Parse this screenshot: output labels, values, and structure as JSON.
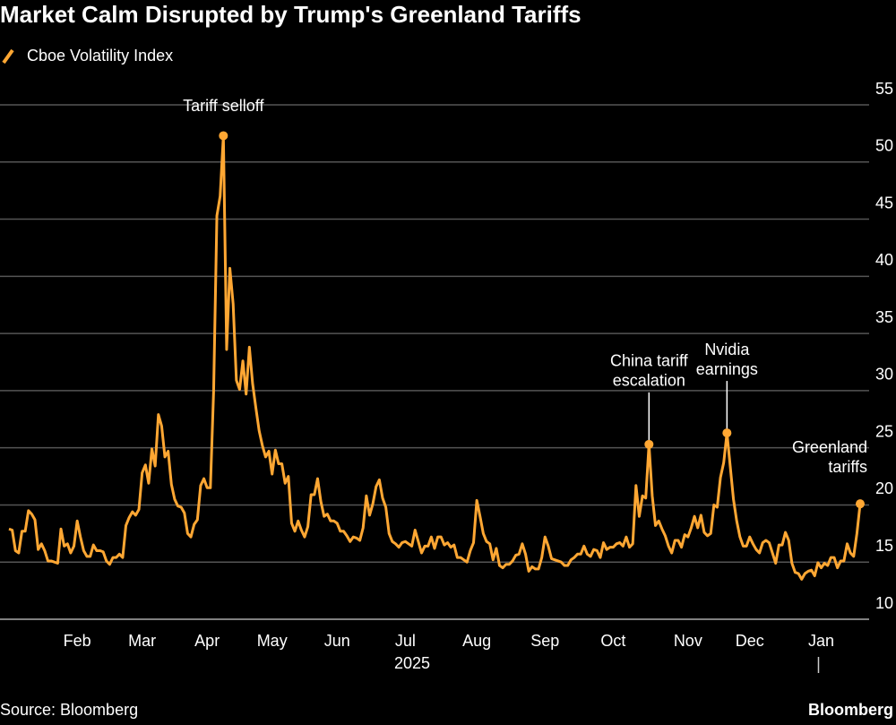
{
  "chart_data": {
    "type": "line",
    "title": "Market Calm Disrupted by Trump's Greenland Tariffs",
    "source": "Source: Bloomberg",
    "brand": "Bloomberg",
    "year_label": "2025",
    "categories": [
      null,
      null,
      null,
      null,
      null,
      null,
      null,
      null,
      null,
      null,
      null,
      null,
      null,
      null,
      null,
      null,
      null,
      null,
      null,
      null,
      null,
      "Feb",
      null,
      null,
      null,
      null,
      null,
      null,
      null,
      null,
      null,
      null,
      null,
      null,
      null,
      null,
      null,
      null,
      null,
      null,
      null,
      "Mar",
      null,
      null,
      null,
      null,
      null,
      null,
      null,
      null,
      null,
      null,
      null,
      null,
      null,
      null,
      null,
      null,
      null,
      null,
      null,
      "Apr",
      null,
      null,
      null,
      null,
      null,
      null,
      null,
      null,
      null,
      null,
      null,
      null,
      null,
      null,
      null,
      null,
      null,
      null,
      null,
      "May",
      null,
      null,
      null,
      null,
      null,
      null,
      null,
      null,
      null,
      null,
      null,
      null,
      null,
      null,
      null,
      null,
      null,
      null,
      null,
      "Jun",
      null,
      null,
      null,
      null,
      null,
      null,
      null,
      null,
      null,
      null,
      null,
      null,
      null,
      null,
      null,
      null,
      null,
      null,
      null,
      null,
      "Jul",
      null,
      null,
      null,
      null,
      null,
      null,
      null,
      null,
      null,
      null,
      null,
      null,
      null,
      null,
      null,
      null,
      null,
      null,
      null,
      null,
      null,
      "Aug",
      null,
      null,
      null,
      null,
      null,
      null,
      null,
      null,
      null,
      null,
      null,
      null,
      null,
      null,
      null,
      null,
      null,
      null,
      null,
      null,
      "Sep",
      null,
      null,
      null,
      null,
      null,
      null,
      null,
      null,
      null,
      null,
      null,
      null,
      null,
      null,
      null,
      null,
      null,
      null,
      null,
      null,
      "Oct",
      null,
      null,
      null,
      null,
      null,
      null,
      null,
      null,
      null,
      null,
      null,
      null,
      null,
      null,
      null,
      null,
      null,
      null,
      null,
      null,
      null,
      null,
      "Nov",
      null,
      null,
      null,
      null,
      null,
      null,
      null,
      null,
      null,
      null,
      null,
      null,
      null,
      null,
      null,
      null,
      null,
      null,
      "Dec",
      null,
      null,
      null,
      null,
      null,
      null,
      null,
      null,
      null,
      null,
      null,
      null,
      null,
      null,
      null,
      null,
      null,
      null,
      null,
      null,
      null,
      "Jan",
      null,
      null,
      null,
      null,
      null,
      null,
      null,
      null,
      null,
      null,
      null,
      null
    ],
    "series": [
      {
        "name": "Cboe Volatility Index",
        "color": "#ffa733",
        "values": [
          17.9,
          17.8,
          16.0,
          15.8,
          17.7,
          17.7,
          19.5,
          19.2,
          18.7,
          16.1,
          16.6,
          16.0,
          15.1,
          15.1,
          15.0,
          14.9,
          17.9,
          16.4,
          16.6,
          15.8,
          16.4,
          18.6,
          17.2,
          16.0,
          15.5,
          15.5,
          16.5,
          16.0,
          16.0,
          15.9,
          15.1,
          14.8,
          15.4,
          15.4,
          15.7,
          15.4,
          18.2,
          18.9,
          19.4,
          19.1,
          19.6,
          22.8,
          23.5,
          21.9,
          24.9,
          23.4,
          27.9,
          26.9,
          24.2,
          24.7,
          21.8,
          20.5,
          19.9,
          19.8,
          19.3,
          17.5,
          17.2,
          18.3,
          18.7,
          21.7,
          22.3,
          21.5,
          21.5,
          30.0,
          45.3,
          47.0,
          52.3,
          33.6,
          40.7,
          37.6,
          30.9,
          30.1,
          32.6,
          29.7,
          33.8,
          30.6,
          28.5,
          26.5,
          25.2,
          24.2,
          24.7,
          22.7,
          24.8,
          23.6,
          23.6,
          21.9,
          22.5,
          18.4,
          17.7,
          18.6,
          17.8,
          17.2,
          18.1,
          20.9,
          20.9,
          22.3,
          20.3,
          19.0,
          19.2,
          18.6,
          18.6,
          18.4,
          17.7,
          17.7,
          17.3,
          16.8,
          17.2,
          17.1,
          16.9,
          18.0,
          20.8,
          19.1,
          20.1,
          21.6,
          22.2,
          20.6,
          19.8,
          17.5,
          16.8,
          16.6,
          16.3,
          16.7,
          16.8,
          16.6,
          16.4,
          17.8,
          16.8,
          15.8,
          16.4,
          16.4,
          17.2,
          16.2,
          17.2,
          17.2,
          16.5,
          16.7,
          16.3,
          16.5,
          15.4,
          15.4,
          15.2,
          15.0,
          16.0,
          16.7,
          20.4,
          19.0,
          17.5,
          16.8,
          16.6,
          15.2,
          16.2,
          14.7,
          14.5,
          14.8,
          14.8,
          15.1,
          15.6,
          15.7,
          16.6,
          15.7,
          14.2,
          14.6,
          14.4,
          14.4,
          15.4,
          17.2,
          16.4,
          15.3,
          15.2,
          15.1,
          15.0,
          14.7,
          14.7,
          15.2,
          15.4,
          15.7,
          15.7,
          16.4,
          15.7,
          15.5,
          16.1,
          16.0,
          15.4,
          16.7,
          16.1,
          16.3,
          16.3,
          16.6,
          16.7,
          16.4,
          17.2,
          16.3,
          16.6,
          21.7,
          19.0,
          20.8,
          20.6,
          25.3,
          20.8,
          18.2,
          18.6,
          17.9,
          17.3,
          16.4,
          15.8,
          16.9,
          16.9,
          16.3,
          17.4,
          17.2,
          18.0,
          19.0,
          18.0,
          19.1,
          17.6,
          17.3,
          17.5,
          20.0,
          19.8,
          22.4,
          23.7,
          26.3,
          23.4,
          20.5,
          18.6,
          17.2,
          16.4,
          16.4,
          17.2,
          16.6,
          16.1,
          15.8,
          16.7,
          16.9,
          16.7,
          15.8,
          14.9,
          16.5,
          16.5,
          17.6,
          16.9,
          14.9,
          14.1,
          14.0,
          13.5,
          14.0,
          14.2,
          14.3,
          13.8,
          14.95,
          14.5,
          14.9,
          14.7,
          15.4,
          15.4,
          14.5,
          15.1,
          15.1,
          16.6,
          15.8,
          15.5,
          17.5,
          20.1
        ]
      }
    ],
    "annotations": [
      {
        "text": [
          "Tariff selloff"
        ],
        "point": 66
      },
      {
        "text": [
          "China tariff",
          "escalation"
        ],
        "point": 197
      },
      {
        "text": [
          "Nvidia",
          "earnings"
        ],
        "point": 221
      },
      {
        "text": [
          "Greenland",
          "tariffs"
        ],
        "point": 262
      }
    ],
    "ylim": [
      10,
      55
    ],
    "yticks": [
      10,
      15,
      20,
      25,
      30,
      35,
      40,
      45,
      50,
      55
    ],
    "grid": true
  }
}
